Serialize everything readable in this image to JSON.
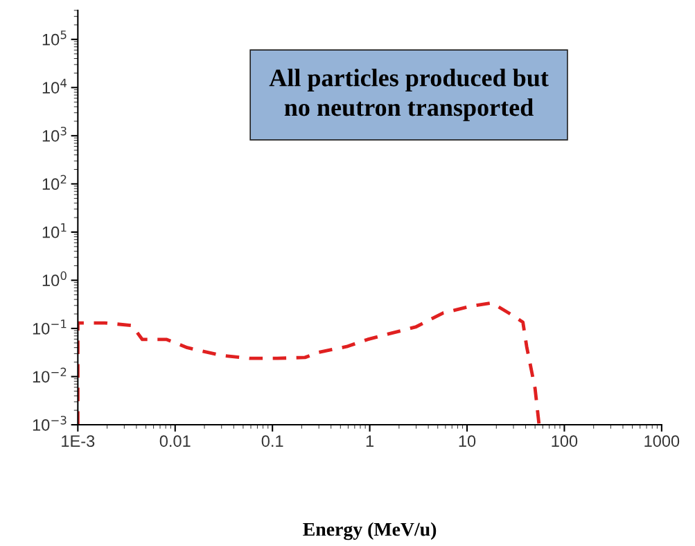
{
  "chart_data": {
    "type": "line",
    "xlabel": "Energy (MeV/u)",
    "annotations": [
      "All particles produced but\nno neutron transported"
    ],
    "log": "xy",
    "grid": false,
    "legend": false,
    "marker": "none",
    "line_style": "dashed",
    "xlim": [
      0.001,
      1000
    ],
    "ylim": [
      0.001,
      400000
    ],
    "xticks": [
      {
        "value": 0.001,
        "label": "1E-3"
      },
      {
        "value": 0.01,
        "label": "0.01"
      },
      {
        "value": 0.1,
        "label": "0.1"
      },
      {
        "value": 1,
        "label": "1"
      },
      {
        "value": 10,
        "label": "10"
      },
      {
        "value": 100,
        "label": "100"
      },
      {
        "value": 1000,
        "label": "1000"
      }
    ],
    "yticks": [
      {
        "value": 0.001,
        "label": "10$^{−3}$"
      },
      {
        "value": 0.01,
        "label": "10$^{−2}$"
      },
      {
        "value": 0.1,
        "label": "10$^{−1}$"
      },
      {
        "value": 1,
        "label": "10$^{0}$"
      },
      {
        "value": 10,
        "label": "10$^{1}$"
      },
      {
        "value": 100,
        "label": "10$^{2}$"
      },
      {
        "value": 1000,
        "label": "10$^{3}$"
      },
      {
        "value": 10000,
        "label": "10$^{4}$"
      },
      {
        "value": 100000,
        "label": "10$^{5}$"
      }
    ],
    "series": [
      {
        "color": "#e02020",
        "x": [
          0.001,
          0.001,
          0.0019,
          0.0036,
          0.0046,
          0.0082,
          0.0133,
          0.03,
          0.058,
          0.112,
          0.216,
          0.3,
          0.58,
          0.95,
          1.56,
          2.96,
          5.7,
          11,
          18,
          29,
          37.5,
          41,
          50,
          55
        ],
        "values": [
          0.001,
          0.13,
          0.13,
          0.115,
          0.059,
          0.059,
          0.04,
          0.0275,
          0.024,
          0.024,
          0.025,
          0.032,
          0.042,
          0.059,
          0.077,
          0.107,
          0.21,
          0.29,
          0.34,
          0.19,
          0.135,
          0.042,
          0.0057,
          0.001
        ]
      }
    ]
  }
}
